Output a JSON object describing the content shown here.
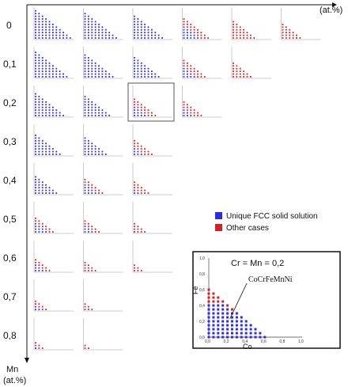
{
  "chart_data": {
    "type": "scatter",
    "description": "Grid of ternary-style composition maps for CoCrFeMnNi alloys",
    "row_labels": [
      "0",
      "0,1",
      "0,2",
      "0,3",
      "0,4",
      "0,5",
      "0,6",
      "0,7",
      "0,8"
    ],
    "col_axis_unit": "(at.%)",
    "row_axis_label": "Mn",
    "row_axis_unit": "(at.%)",
    "legend": [
      {
        "label": "Unique FCC solid solution",
        "color": "#2b2bf0"
      },
      {
        "label": "Other cases",
        "color": "#d32020"
      }
    ],
    "panels_per_row": [
      6,
      5,
      4,
      3,
      3,
      3,
      3,
      2,
      2
    ],
    "highlighted_panel": {
      "row": 2,
      "col": 2
    },
    "inset": {
      "title": "Cr = Mn = 0,2",
      "xlabel": "Co",
      "ylabel": "Fe",
      "xlim": [
        0,
        1
      ],
      "ylim": [
        0,
        1
      ],
      "x_ticks": [
        "0,0",
        "0,2",
        "0,4",
        "0,6",
        "0,8",
        "1,0"
      ],
      "y_ticks": [
        "0,0",
        "0,2",
        "0,4",
        "0,6",
        "0,8",
        "1,0"
      ],
      "annotation": "CoCrFeMnNi",
      "annotation_point": [
        0.2,
        0.2
      ]
    }
  }
}
